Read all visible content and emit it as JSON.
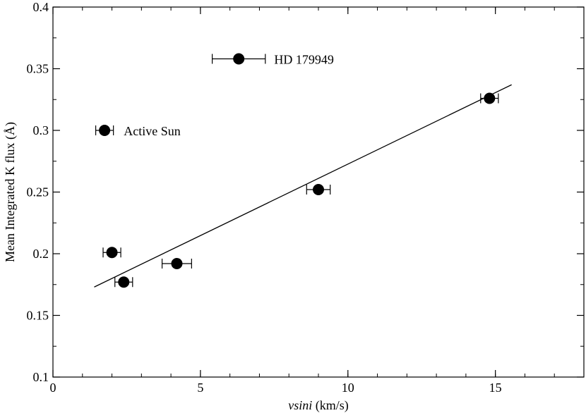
{
  "chart_data": {
    "type": "scatter",
    "title": "",
    "xlabel_italic": "vsini",
    "xlabel_rest": " (km/s)",
    "ylabel": "Mean Integrated K flux (Å)",
    "xlim": [
      0,
      18
    ],
    "ylim": [
      0.1,
      0.4
    ],
    "grid": false,
    "x_ticks": [
      0,
      5,
      10,
      15
    ],
    "y_ticks": [
      0.1,
      0.15,
      0.2,
      0.25,
      0.3,
      0.35,
      0.4
    ],
    "x_tick_labels": [
      "0",
      "5",
      "10",
      "15"
    ],
    "y_tick_labels": [
      "0.1",
      "0.15",
      "0.2",
      "0.25",
      "0.3",
      "0.35",
      "0.4"
    ],
    "x_minor_step": 1,
    "y_minor_step": 0.025,
    "points": [
      {
        "x": 1.75,
        "y": 0.3,
        "xerr": 0.3
      },
      {
        "x": 2.0,
        "y": 0.201,
        "xerr": 0.3
      },
      {
        "x": 2.4,
        "y": 0.177,
        "xerr": 0.3
      },
      {
        "x": 4.2,
        "y": 0.192,
        "xerr": 0.5
      },
      {
        "x": 6.3,
        "y": 0.358,
        "xerr": 0.9
      },
      {
        "x": 9.0,
        "y": 0.252,
        "xerr": 0.4
      },
      {
        "x": 14.8,
        "y": 0.326,
        "xerr": 0.3
      }
    ],
    "fit_line": {
      "x": [
        1.4,
        15.55
      ],
      "y": [
        0.173,
        0.337
      ]
    },
    "annotations": [
      {
        "text": "Active Sun",
        "x": 2.4,
        "y": 0.3
      },
      {
        "text": "HD 179949",
        "x": 7.5,
        "y": 0.358
      }
    ]
  }
}
